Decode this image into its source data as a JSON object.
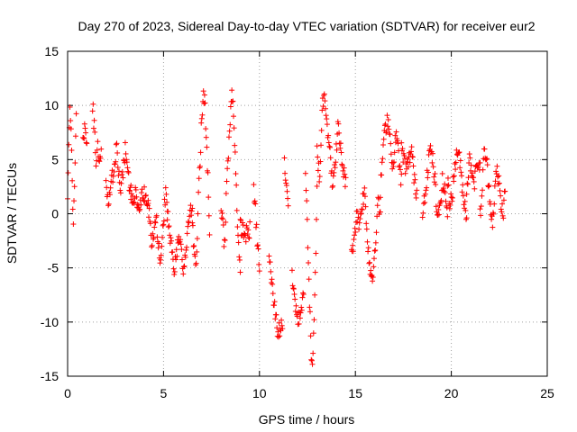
{
  "chart_data": {
    "type": "scatter",
    "title": "Day 270 of 2023, Sidereal Day-to-day VTEC variation (SDTVAR) for receiver eur2",
    "xlabel": "GPS time / hours",
    "ylabel": "SDTVAR / TECUs",
    "xlim": [
      0,
      25
    ],
    "ylim": [
      -15,
      15
    ],
    "xticks": [
      0,
      5,
      10,
      15,
      20,
      25
    ],
    "yticks": [
      -15,
      -10,
      -5,
      0,
      5,
      10,
      15
    ],
    "xtick_labels": [
      "0",
      "5",
      "10",
      "15",
      "20",
      "25"
    ],
    "ytick_labels": [
      "-15",
      "-10",
      "-5",
      "0",
      "5",
      "10",
      "15"
    ],
    "grid": true,
    "marker": "plus",
    "color": "#ff0000",
    "series": [
      {
        "name": "SDTVAR",
        "segments": [
          {
            "x0": 0.0,
            "x1": 0.45,
            "y": [
              1,
              5,
              8,
              10,
              9,
              6,
              2,
              -1,
              0.5,
              3,
              7,
              10
            ]
          },
          {
            "x0": 0.8,
            "x1": 1.0,
            "y": [
              7,
              8,
              6.5
            ]
          },
          {
            "x0": 1.3,
            "x1": 1.75,
            "y": [
              10,
              8,
              5,
              6,
              4.5,
              5.5
            ]
          },
          {
            "x0": 2.0,
            "x1": 3.3,
            "y": [
              3,
              1,
              2,
              4,
              3,
              5,
              6,
              4,
              2,
              3,
              5,
              6,
              4,
              3,
              2
            ]
          },
          {
            "x0": 3.3,
            "x1": 4.2,
            "y": [
              2,
              1,
              2,
              1,
              0,
              1.5,
              2,
              1,
              0.5
            ]
          },
          {
            "x0": 4.2,
            "x1": 5.2,
            "y": [
              1,
              -1,
              -3,
              -2,
              0,
              -1,
              -3,
              -4,
              -2,
              0,
              2,
              1
            ]
          },
          {
            "x0": 5.2,
            "x1": 6.5,
            "y": [
              0,
              -2,
              -3,
              -5,
              -4,
              -2,
              -3,
              -5,
              -4,
              -1,
              0,
              1
            ]
          },
          {
            "x0": 6.5,
            "x1": 7.4,
            "y": [
              -1,
              -3,
              -5,
              -4,
              2,
              5,
              9,
              11,
              10,
              7,
              3,
              -2
            ]
          },
          {
            "x0": 8.0,
            "x1": 9.0,
            "y": [
              1,
              -1,
              -3,
              2,
              5,
              8,
              11,
              10,
              6,
              1,
              -3,
              -6
            ]
          },
          {
            "x0": 9.0,
            "x1": 9.5,
            "y": [
              -1,
              -2,
              -1.5
            ]
          },
          {
            "x0": 9.7,
            "x1": 10.0,
            "y": [
              2,
              0,
              -3,
              -5
            ]
          },
          {
            "x0": 10.5,
            "x1": 11.2,
            "y": [
              -4,
              -8,
              -11,
              -10
            ]
          },
          {
            "x0": 11.3,
            "x1": 11.5,
            "y": [
              4.5,
              3,
              1
            ]
          },
          {
            "x0": 11.7,
            "x1": 12.3,
            "y": [
              -6,
              -8,
              -10,
              -9,
              -7
            ]
          },
          {
            "x0": 12.4,
            "x1": 13.0,
            "y": [
              3,
              0,
              -4,
              -9,
              -13,
              -14,
              -10,
              -5,
              2
            ]
          },
          {
            "x0": 13.0,
            "x1": 14.5,
            "y": [
              6,
              3,
              10,
              11,
              8,
              6,
              2,
              5,
              8,
              6,
              4,
              3
            ]
          },
          {
            "x0": 14.8,
            "x1": 16.3,
            "y": [
              -4,
              -2,
              0,
              -1,
              1,
              2,
              -2,
              -5,
              -6,
              -3,
              1,
              0
            ]
          },
          {
            "x0": 16.3,
            "x1": 17.4,
            "y": [
              2,
              6,
              8,
              9,
              6,
              4,
              8,
              5,
              3
            ]
          },
          {
            "x0": 17.4,
            "x1": 18.2,
            "y": [
              6,
              5,
              4,
              5,
              6,
              3,
              2
            ]
          },
          {
            "x0": 18.5,
            "x1": 19.8,
            "y": [
              0,
              2,
              4,
              6,
              5,
              3,
              -1,
              1,
              3,
              2,
              0
            ]
          },
          {
            "x0": 19.8,
            "x1": 20.8,
            "y": [
              3,
              1,
              2,
              4,
              6,
              5,
              3,
              1,
              0
            ]
          },
          {
            "x0": 20.8,
            "x1": 21.5,
            "y": [
              2,
              5,
              4,
              3,
              5,
              4
            ]
          },
          {
            "x0": 21.5,
            "x1": 22.8,
            "y": [
              0,
              2,
              6,
              5,
              3,
              1,
              -1,
              2,
              4,
              3,
              1,
              0,
              2
            ]
          }
        ]
      }
    ]
  }
}
